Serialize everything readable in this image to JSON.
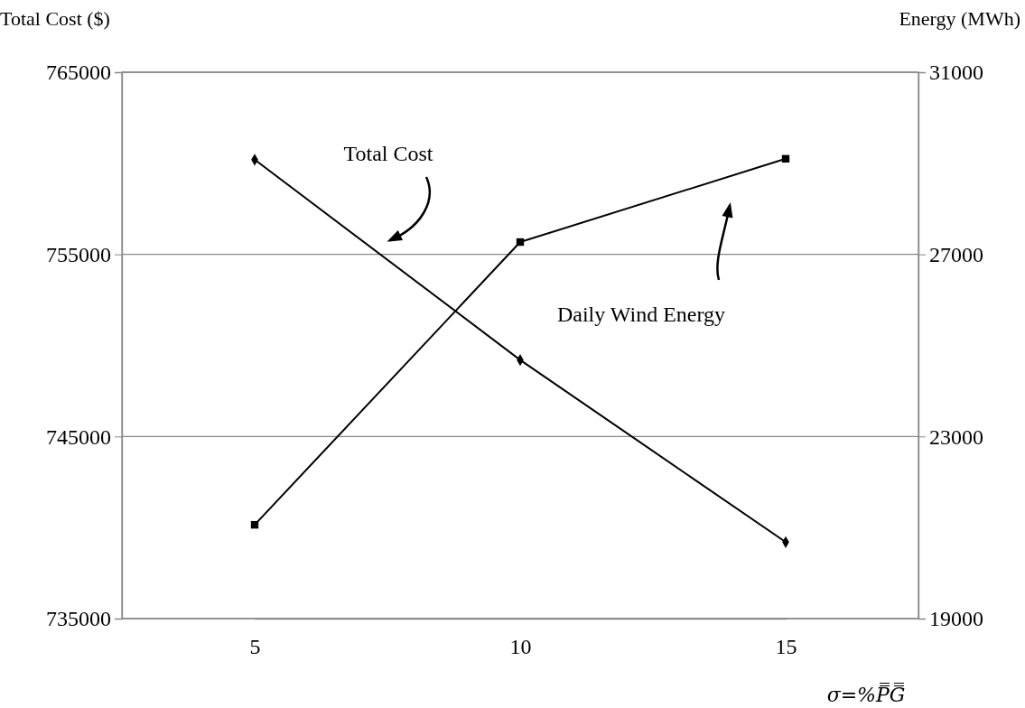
{
  "chart_data": {
    "type": "line",
    "xlabel": "σ=%P̿G̿",
    "ylabel": "Total Cost ($)",
    "y2label": "Energy (MWh)",
    "categories": [
      "5",
      "10",
      "15"
    ],
    "series": [
      {
        "color": "#000000",
        "marker": "diamond",
        "values": [
          760200,
          749200,
          739200
        ]
      },
      {
        "color": "#000000",
        "marker": "square",
        "axis": "y2",
        "values": [
          21060,
          27270,
          29100
        ]
      }
    ],
    "annotations": [
      "Total Cost",
      "Daily Wind Energy"
    ],
    "ylim": [
      735000,
      765000
    ],
    "yticks": [
      735000,
      745000,
      755000,
      765000
    ],
    "y2lim": [
      19000,
      31000
    ],
    "y2ticks": [
      19000,
      23000,
      27000,
      31000
    ],
    "grid": "y"
  }
}
